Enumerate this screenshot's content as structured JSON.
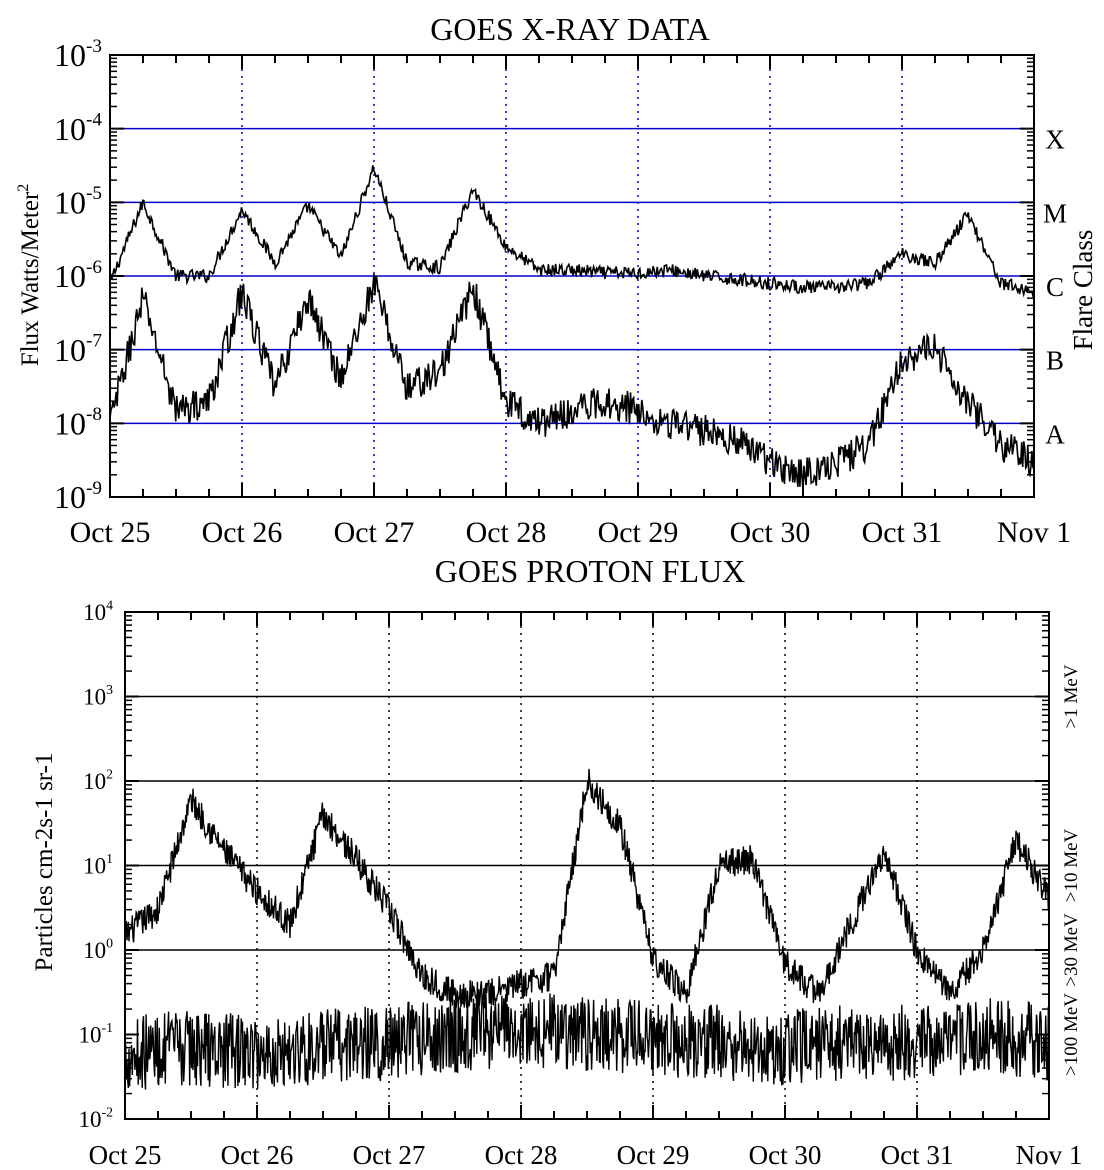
{
  "colors": {
    "axis": "#000000",
    "trace": "#000000",
    "class_line": "#0000cc",
    "day_line_xray": "#0000cc",
    "day_line_proton": "#000000",
    "background": "#ffffff"
  },
  "chart_data": [
    {
      "type": "line",
      "title": "GOES X-RAY DATA",
      "ylabel": "Flux Watts/Meter",
      "ylabel_superscript": "2",
      "y2label": "Flare Class",
      "yscale": "log",
      "ylim": [
        1e-09,
        0.001
      ],
      "y_ticks": [
        {
          "base": "10",
          "exp": "-9"
        },
        {
          "base": "10",
          "exp": "-8"
        },
        {
          "base": "10",
          "exp": "-7"
        },
        {
          "base": "10",
          "exp": "-6"
        },
        {
          "base": "10",
          "exp": "-5"
        },
        {
          "base": "10",
          "exp": "-4"
        },
        {
          "base": "10",
          "exp": "-3"
        }
      ],
      "x_ticks": [
        "Oct 25",
        "Oct 26",
        "Oct 27",
        "Oct 28",
        "Oct 29",
        "Oct 30",
        "Oct 31",
        "Nov 1"
      ],
      "flare_classes": [
        {
          "label": "A",
          "level": 1e-08
        },
        {
          "label": "B",
          "level": 1e-07
        },
        {
          "label": "C",
          "level": 1e-06
        },
        {
          "label": "M",
          "level": 1e-05
        },
        {
          "label": "X",
          "level": 0.0001
        }
      ],
      "grid": "dotted vertical lines at day boundaries",
      "series": [
        {
          "x": [
            "Oct 25 00:00",
            "Oct 25 06:00",
            "Oct 25 12:00",
            "Oct 25 18:00",
            "Oct 26 00:00",
            "Oct 26 06:00",
            "Oct 26 12:00",
            "Oct 26 18:00",
            "Oct 27 00:00",
            "Oct 27 06:00",
            "Oct 27 12:00",
            "Oct 27 18:00",
            "Oct 28 00:00",
            "Oct 28 06:00",
            "Oct 28 12:00",
            "Oct 28 18:00",
            "Oct 29 00:00",
            "Oct 29 06:00",
            "Oct 29 12:00",
            "Oct 29 18:00",
            "Oct 30 00:00",
            "Oct 30 06:00",
            "Oct 30 12:00",
            "Oct 30 18:00",
            "Oct 31 00:00",
            "Oct 31 06:00",
            "Oct 31 12:00",
            "Oct 31 18:00",
            "Nov 1 00:00"
          ],
          "values": [
            8e-07,
            1e-05,
            1e-06,
            1e-06,
            8e-06,
            1.5e-06,
            9e-06,
            1.8e-06,
            3e-05,
            1.5e-06,
            1.3e-06,
            1.5e-05,
            2.5e-06,
            1.2e-06,
            1.2e-06,
            1.1e-06,
            1.1e-06,
            1.2e-06,
            1e-06,
            9e-07,
            8e-07,
            7e-07,
            7e-07,
            8e-07,
            2e-06,
            1.5e-06,
            7e-06,
            8e-07,
            6e-07
          ]
        },
        {
          "x": [
            "Oct 25 00:00",
            "Oct 25 06:00",
            "Oct 25 12:00",
            "Oct 25 18:00",
            "Oct 26 00:00",
            "Oct 26 06:00",
            "Oct 26 12:00",
            "Oct 26 18:00",
            "Oct 27 00:00",
            "Oct 27 06:00",
            "Oct 27 12:00",
            "Oct 27 18:00",
            "Oct 28 00:00",
            "Oct 28 06:00",
            "Oct 28 12:00",
            "Oct 28 18:00",
            "Oct 29 00:00",
            "Oct 29 06:00",
            "Oct 29 12:00",
            "Oct 29 18:00",
            "Oct 30 00:00",
            "Oct 30 06:00",
            "Oct 30 12:00",
            "Oct 30 18:00",
            "Oct 31 00:00",
            "Oct 31 06:00",
            "Oct 31 12:00",
            "Oct 31 18:00",
            "Nov 1 00:00"
          ],
          "values": [
            1e-08,
            5e-07,
            1.5e-08,
            2e-08,
            6e-07,
            3e-08,
            5e-07,
            4e-08,
            8e-07,
            3e-08,
            5e-08,
            7e-07,
            2e-08,
            1e-08,
            1.5e-08,
            2e-08,
            1.5e-08,
            1e-08,
            8e-09,
            6e-09,
            3e-09,
            2e-09,
            3e-09,
            5e-09,
            8e-08,
            1e-07,
            2e-08,
            5e-09,
            3e-09
          ]
        }
      ]
    },
    {
      "type": "line",
      "title": "GOES PROTON FLUX",
      "ylabel": "Particles cm-2s-1 sr-1",
      "yscale": "log",
      "ylim": [
        0.01,
        10000
      ],
      "y_ticks": [
        {
          "base": "10",
          "exp": "-2"
        },
        {
          "base": "10",
          "exp": "-1"
        },
        {
          "base": "10",
          "exp": "0"
        },
        {
          "base": "10",
          "exp": "1"
        },
        {
          "base": "10",
          "exp": "2"
        },
        {
          "base": "10",
          "exp": "3"
        },
        {
          "base": "10",
          "exp": "4"
        }
      ],
      "x_ticks": [
        "Oct 25",
        "Oct 26",
        "Oct 27",
        "Oct 28",
        "Oct 29",
        "Oct 30",
        "Oct 31",
        "Nov 1"
      ],
      "levels": [
        {
          "label": ">100 MeV",
          "level": 0.1
        },
        {
          "label": ">30 MeV",
          "level": 1
        },
        {
          "label": ">10 MeV",
          "level": 10
        },
        {
          "label": ">1 MeV",
          "level": 1000
        }
      ],
      "reference_lines": [
        1,
        10,
        100,
        1000
      ],
      "grid": "dotted vertical lines at day boundaries",
      "series": [
        {
          "x": [
            "Oct 25 00:00",
            "Oct 25 06:00",
            "Oct 25 12:00",
            "Oct 25 18:00",
            "Oct 26 00:00",
            "Oct 26 06:00",
            "Oct 26 12:00",
            "Oct 26 18:00",
            "Oct 27 00:00",
            "Oct 27 06:00",
            "Oct 27 12:00",
            "Oct 27 18:00",
            "Oct 28 00:00",
            "Oct 28 06:00",
            "Oct 28 12:00",
            "Oct 28 18:00",
            "Oct 29 00:00",
            "Oct 29 06:00",
            "Oct 29 12:00",
            "Oct 29 18:00",
            "Oct 30 00:00",
            "Oct 30 06:00",
            "Oct 30 12:00",
            "Oct 30 18:00",
            "Oct 31 00:00",
            "Oct 31 06:00",
            "Oct 31 12:00",
            "Oct 31 18:00",
            "Nov 1 00:00"
          ],
          "values": [
            1.5,
            3,
            60,
            15,
            5,
            2,
            40,
            12,
            3,
            0.5,
            0.3,
            0.3,
            0.4,
            0.5,
            100,
            30,
            0.8,
            0.3,
            10,
            12,
            0.7,
            0.3,
            2,
            15,
            1,
            0.3,
            1,
            20,
            4
          ]
        },
        {
          "x": [
            "Oct 25 00:00",
            "Oct 25 12:00",
            "Oct 26 00:00",
            "Oct 26 12:00",
            "Oct 27 00:00",
            "Oct 27 12:00",
            "Oct 28 00:00",
            "Oct 28 12:00",
            "Oct 29 00:00",
            "Oct 29 12:00",
            "Oct 30 00:00",
            "Oct 30 12:00",
            "Oct 31 00:00",
            "Oct 31 12:00",
            "Nov 1 00:00"
          ],
          "values": [
            0.06,
            0.07,
            0.06,
            0.07,
            0.08,
            0.1,
            0.12,
            0.1,
            0.09,
            0.08,
            0.07,
            0.08,
            0.08,
            0.1,
            0.08
          ]
        }
      ]
    }
  ]
}
